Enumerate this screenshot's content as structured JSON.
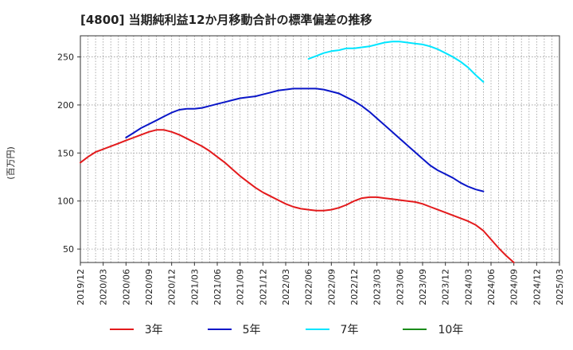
{
  "chart_data": {
    "type": "line",
    "title": "[4800]  当期純利益12か月移動合計の標準偏差の推移",
    "ylabel": "(百万円)",
    "ylim": [
      36,
      272
    ],
    "yticks": [
      50,
      100,
      150,
      200,
      250
    ],
    "x_ticks": [
      "2019/12",
      "2020/03",
      "2020/06",
      "2020/09",
      "2020/12",
      "2021/03",
      "2021/06",
      "2021/09",
      "2021/12",
      "2022/03",
      "2022/06",
      "2022/09",
      "2022/12",
      "2023/03",
      "2023/06",
      "2023/09",
      "2023/12",
      "2024/03",
      "2024/06",
      "2024/09",
      "2024/12",
      "2025/03"
    ],
    "grid": true,
    "legend_position": "bottom",
    "series": [
      {
        "name": "3年",
        "color": "#e31a1c",
        "start": 0,
        "values": [
          140,
          146,
          151,
          154,
          157,
          160,
          163,
          166,
          169,
          172,
          174,
          174,
          172,
          169,
          165,
          161,
          157,
          152,
          146,
          140,
          133,
          126,
          120,
          114,
          109,
          105,
          101,
          97,
          94,
          92,
          91,
          90,
          90,
          91,
          93,
          96,
          100,
          103,
          104,
          104,
          103,
          102,
          101,
          100,
          99,
          97,
          94,
          91,
          88,
          85,
          82,
          79,
          75,
          69,
          60,
          51,
          43,
          36
        ]
      },
      {
        "name": "5年",
        "color": "#0a16c8",
        "start": 6,
        "values": [
          166,
          171,
          176,
          180,
          184,
          188,
          192,
          195,
          196,
          196,
          197,
          199,
          201,
          203,
          205,
          207,
          208,
          209,
          211,
          213,
          215,
          216,
          217,
          217,
          217,
          217,
          216,
          214,
          212,
          208,
          204,
          199,
          193,
          186,
          179,
          172,
          165,
          158,
          151,
          144,
          137,
          132,
          128,
          124,
          119,
          115,
          112,
          110
        ]
      },
      {
        "name": "7年",
        "color": "#00e5ff",
        "start": 30,
        "values": [
          248,
          251,
          254,
          256,
          257,
          259,
          259,
          260,
          261,
          263,
          265,
          266,
          266,
          265,
          264,
          263,
          261,
          258,
          254,
          250,
          245,
          239,
          231,
          224
        ]
      },
      {
        "name": "10年",
        "color": "#1a8c1a",
        "start": 0,
        "values": []
      }
    ]
  }
}
